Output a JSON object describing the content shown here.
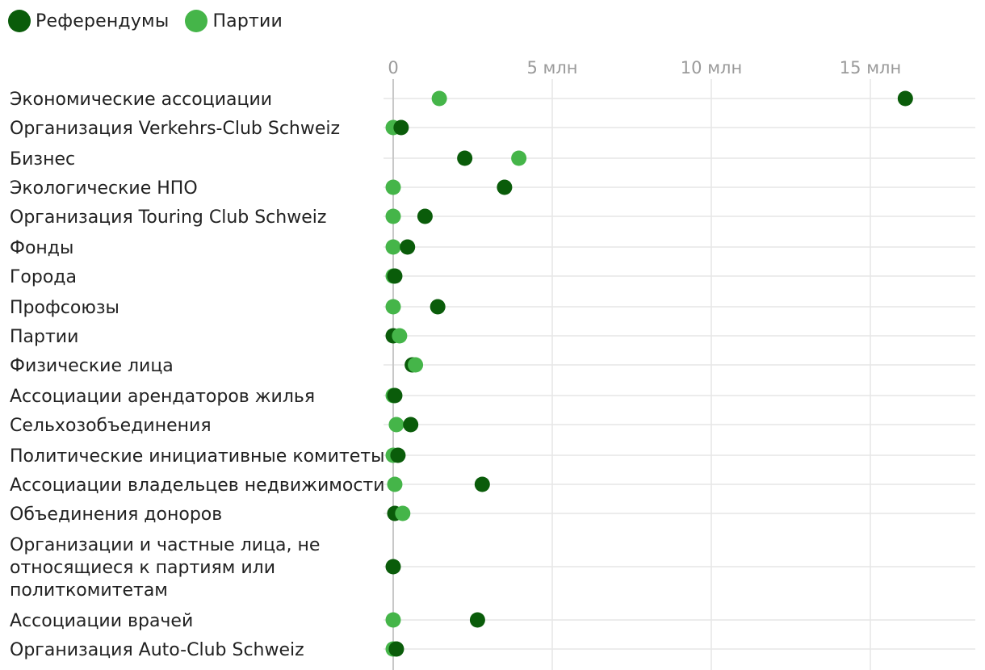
{
  "chart_data": {
    "type": "scatter",
    "orientation": "horizontal-dot-plot",
    "title": "",
    "xlabel": "",
    "ylabel": "",
    "xlim": [
      0,
      18
    ],
    "x_ticks": [
      0,
      5,
      10,
      15
    ],
    "x_tick_labels": [
      "0",
      "5 млн",
      "10 млн",
      "15 млн"
    ],
    "grid": true,
    "legend_position": "top-left",
    "categories": [
      "Экономические ассоциации",
      "Организация Verkehrs-Club Schweiz",
      "Бизнес",
      "Экологические НПО",
      "Организация Touring Club Schweiz",
      "Фонды",
      "Города",
      "Профсоюзы",
      "Партии",
      "Физические лица",
      "Ассоциации арендаторов жилья",
      "Сельхозобъединения",
      "Политические инициативные комитеты",
      "Ассоциации владельцев недвижимости",
      "Объединения доноров",
      "Организации и частные лица, не относящиеся к партиям или политкомитетам",
      "Ассоциации врачей",
      "Организация Auto-Club Schweiz"
    ],
    "category_lines": [
      [
        "Экономические ассоциации"
      ],
      [
        "Организация Verkehrs-Club Schweiz"
      ],
      [
        "Бизнес"
      ],
      [
        "Экологические НПО"
      ],
      [
        "Организация Touring Club Schweiz"
      ],
      [
        "Фонды"
      ],
      [
        "Города"
      ],
      [
        "Профсоюзы"
      ],
      [
        "Партии"
      ],
      [
        "Физические лица"
      ],
      [
        "Ассоциации арендаторов жилья"
      ],
      [
        "Сельхозобъединения"
      ],
      [
        "Политические инициативные комитеты"
      ],
      [
        "Ассоциации владельцев недвижимости"
      ],
      [
        "Объединения доноров"
      ],
      [
        "Организации и частные лица, не",
        "относящиеся к партиям или",
        "политкомитетам"
      ],
      [
        "Ассоциации врачей"
      ],
      [
        "Организация Auto-Club Schweiz"
      ]
    ],
    "series": [
      {
        "name": "Референдумы",
        "color": "#0a5c0a",
        "values": [
          16.1,
          0.25,
          2.25,
          3.5,
          1.0,
          0.45,
          0.05,
          1.4,
          0.0,
          0.6,
          0.05,
          0.55,
          0.15,
          2.8,
          0.05,
          0.0,
          2.65,
          0.1
        ]
      },
      {
        "name": "Партии",
        "color": "#45b549",
        "values": [
          1.45,
          0.0,
          3.95,
          0.0,
          0.0,
          0.0,
          0.0,
          0.0,
          0.2,
          0.7,
          0.0,
          0.1,
          0.0,
          0.05,
          0.3,
          null,
          0.0,
          0.0
        ]
      }
    ]
  }
}
